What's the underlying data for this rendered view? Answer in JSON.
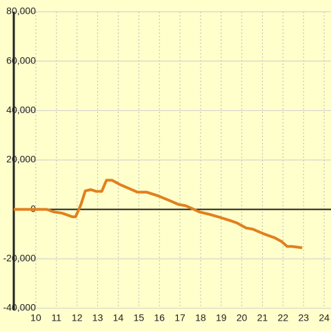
{
  "chart_data": {
    "type": "line",
    "x": [
      8.93,
      10.53,
      10.87,
      11.27,
      11.77,
      11.93,
      12.2,
      12.4,
      12.67,
      12.93,
      13.2,
      13.43,
      13.7,
      14.1,
      14.93,
      15.37,
      15.93,
      16.43,
      16.93,
      17.27,
      17.6,
      17.93,
      18.43,
      18.93,
      19.43,
      19.77,
      20.2,
      20.53,
      21.1,
      21.6,
      21.93,
      22.2,
      22.43,
      22.93
    ],
    "series": [
      {
        "color": "#e0801f",
        "values": [
          0,
          0,
          -1000,
          -1500,
          -3000,
          -3000,
          2200,
          7500,
          8000,
          7300,
          7300,
          11800,
          11800,
          10000,
          7000,
          7000,
          5500,
          3800,
          2000,
          1500,
          300,
          -1000,
          -2000,
          -3200,
          -4500,
          -5500,
          -7500,
          -8000,
          -10000,
          -11500,
          -13000,
          -15000,
          -15000,
          -15500
        ]
      }
    ],
    "xlim": [
      8.93,
      24.33
    ],
    "xticks": [
      10,
      11,
      12,
      13,
      14,
      15,
      16,
      17,
      18,
      19,
      20,
      21,
      22,
      23,
      24
    ],
    "ylim": [
      -40000,
      80000
    ],
    "yticks": [
      {
        "value": -40000,
        "label": "-40,000"
      },
      {
        "value": -20000,
        "label": "-20,000"
      },
      0,
      {
        "value": 20000,
        "label": "20,000"
      },
      {
        "value": 40000,
        "label": "40,000"
      },
      {
        "value": 60000,
        "label": "60,000"
      },
      {
        "value": 80000,
        "label": "80,000"
      }
    ],
    "grid": true
  }
}
